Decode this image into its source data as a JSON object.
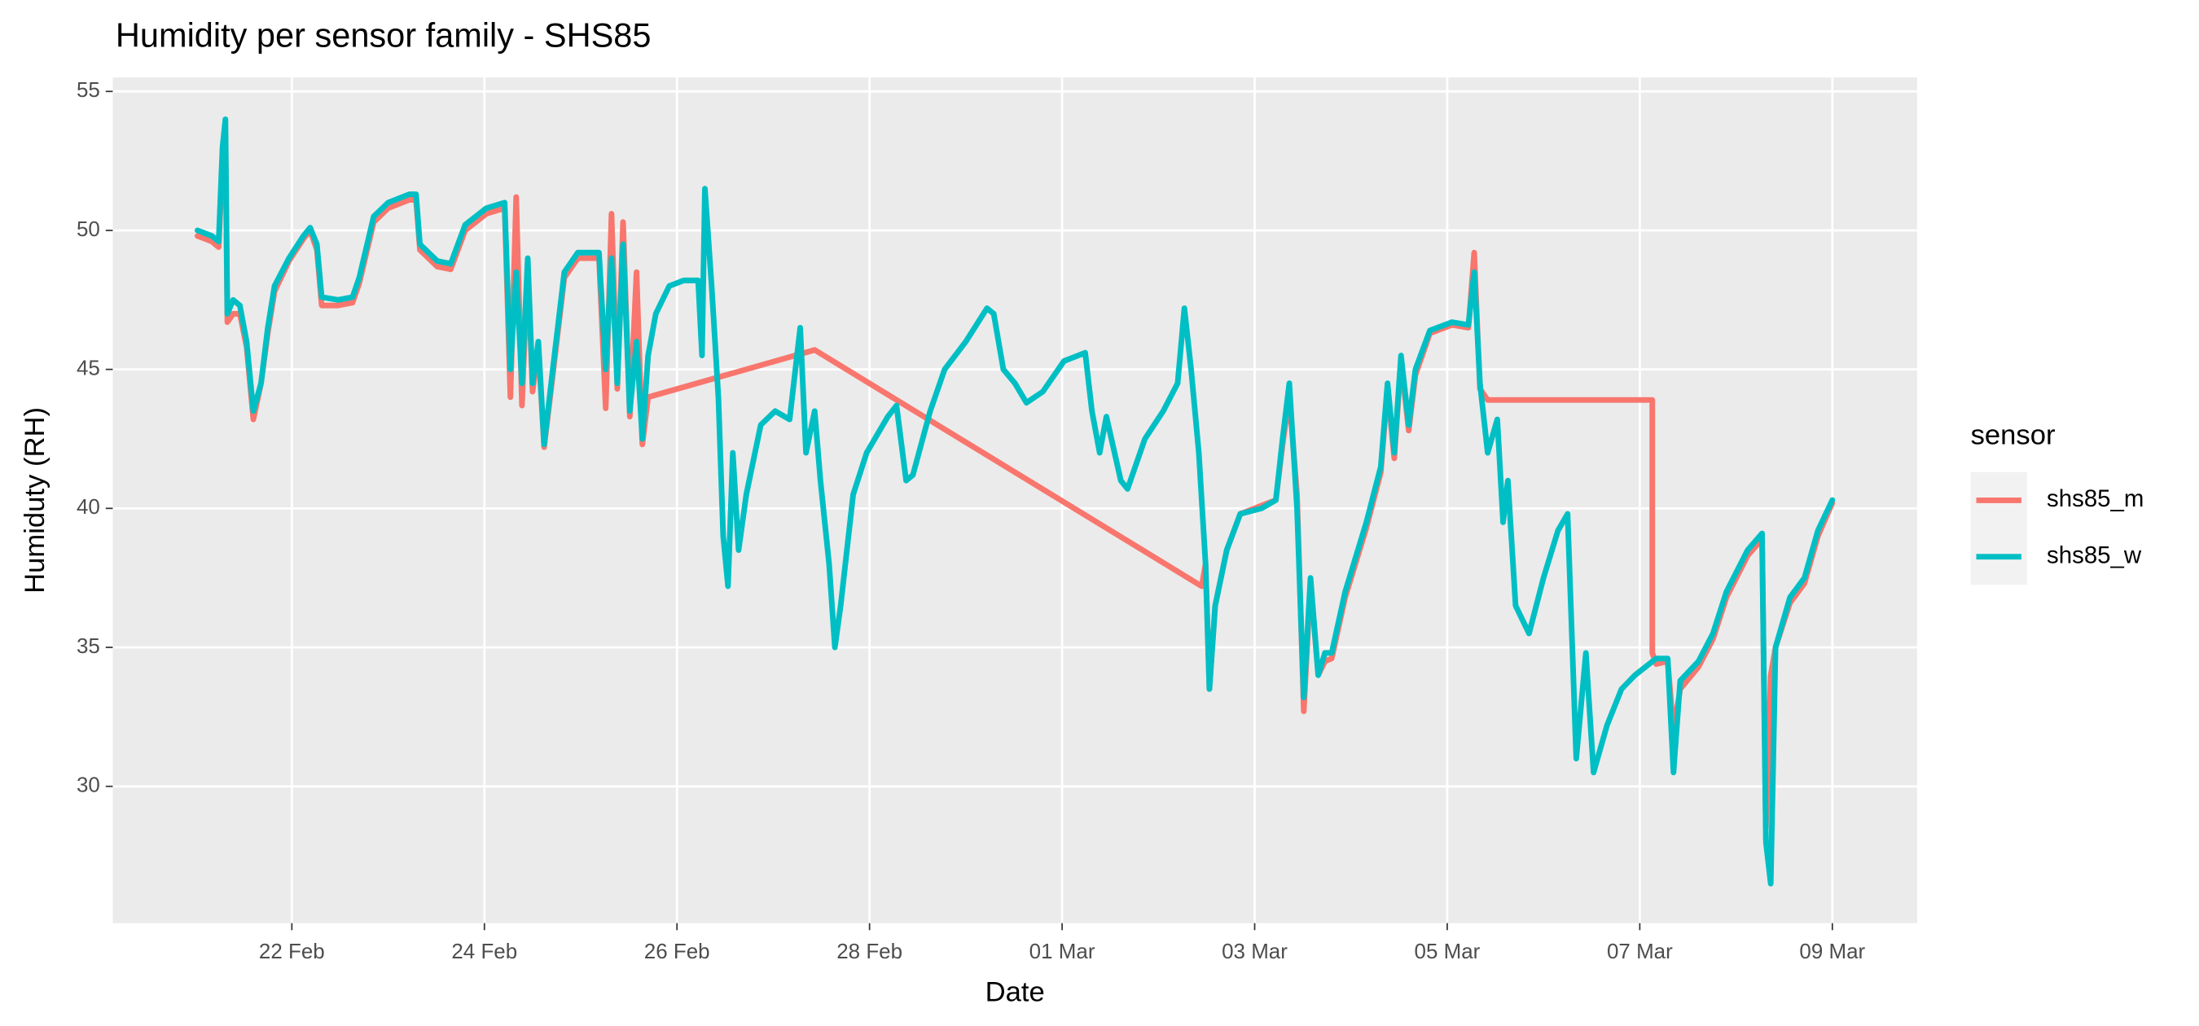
{
  "chart_data": {
    "type": "line",
    "title": "Humidity per sensor family - SHS85",
    "x_label": "Date",
    "y_label": "Humiduty (RH)",
    "legend_title": "sensor",
    "legend_position": "right",
    "grid": true,
    "xlim": [
      20.14,
      38.88
    ],
    "xticks": [
      {
        "value": 22,
        "label": "22 Feb"
      },
      {
        "value": 24,
        "label": "24 Feb"
      },
      {
        "value": 26,
        "label": "26 Feb"
      },
      {
        "value": 28,
        "label": "28 Feb"
      },
      {
        "value": 30,
        "label": "01 Mar"
      },
      {
        "value": 32,
        "label": "03 Mar"
      },
      {
        "value": 34,
        "label": "05 Mar"
      },
      {
        "value": 36,
        "label": "07 Mar"
      },
      {
        "value": 38,
        "label": "09 Mar"
      }
    ],
    "ylim": [
      25.08,
      55.5
    ],
    "yticks": [
      30,
      35,
      40,
      45,
      50,
      55
    ],
    "series": [
      {
        "name": "shs85_m",
        "color": "#F8766D",
        "x": [
          21.02,
          21.17,
          21.24,
          21.28,
          21.31,
          21.33,
          21.39,
          21.46,
          21.53,
          21.6,
          21.68,
          21.75,
          21.82,
          21.97,
          22.12,
          22.19,
          22.26,
          22.31,
          22.48,
          22.63,
          22.7,
          22.85,
          23.0,
          23.22,
          23.29,
          23.33,
          23.51,
          23.65,
          23.8,
          24.02,
          24.21,
          24.27,
          24.33,
          24.39,
          24.45,
          24.5,
          24.56,
          24.62,
          24.71,
          24.83,
          24.97,
          25.19,
          25.26,
          25.32,
          25.38,
          25.44,
          25.51,
          25.58,
          25.64,
          25.7,
          27.43,
          31.45,
          31.49,
          31.53,
          31.59,
          31.71,
          31.85,
          32.07,
          32.22,
          32.29,
          32.36,
          32.44,
          32.51,
          32.58,
          32.66,
          32.73,
          32.8,
          32.94,
          33.16,
          33.31,
          33.38,
          33.45,
          33.52,
          33.6,
          33.67,
          33.82,
          34.05,
          34.22,
          34.28,
          34.34,
          34.42,
          36.13,
          36.13,
          36.17,
          36.29,
          36.35,
          36.42,
          36.61,
          36.76,
          36.9,
          37.12,
          37.27,
          37.31,
          37.36,
          37.41,
          37.56,
          37.71,
          37.85,
          38.0
        ],
        "values": [
          49.8,
          49.6,
          49.4,
          52.5,
          53.5,
          46.7,
          47,
          47,
          45.8,
          43.2,
          44.5,
          46.3,
          47.8,
          48.9,
          49.7,
          50,
          49.3,
          47.3,
          47.3,
          47.4,
          48.1,
          50.3,
          50.8,
          51.1,
          51.1,
          49.3,
          48.7,
          48.6,
          50,
          50.6,
          50.8,
          44,
          51.2,
          43.7,
          48.8,
          44.2,
          45.8,
          42.2,
          44.8,
          48.3,
          49,
          49,
          43.6,
          50.6,
          44.3,
          50.3,
          43.3,
          48.5,
          42.3,
          44,
          45.7,
          37.2,
          38,
          33.5,
          36.5,
          38.5,
          39.8,
          40.1,
          40.3,
          42.3,
          44,
          40.5,
          32.7,
          37.3,
          34,
          34.5,
          34.6,
          36.8,
          39.3,
          41.3,
          44.3,
          41.8,
          45.3,
          42.8,
          44.8,
          46.3,
          46.6,
          46.5,
          49.2,
          44.3,
          43.9,
          43.9,
          34.8,
          34.4,
          34.5,
          32,
          33.5,
          34.3,
          35.3,
          36.8,
          38.3,
          38.9,
          28.5,
          34,
          35,
          36.6,
          37.3,
          39,
          40.2
        ]
      },
      {
        "name": "shs85_w",
        "color": "#00BFC4",
        "x": [
          21.02,
          21.17,
          21.24,
          21.28,
          21.31,
          21.33,
          21.39,
          21.46,
          21.53,
          21.6,
          21.68,
          21.75,
          21.82,
          21.97,
          22.12,
          22.19,
          22.26,
          22.31,
          22.48,
          22.63,
          22.7,
          22.85,
          23.0,
          23.22,
          23.29,
          23.33,
          23.51,
          23.65,
          23.8,
          24.02,
          24.21,
          24.27,
          24.33,
          24.39,
          24.45,
          24.5,
          24.56,
          24.62,
          24.71,
          24.83,
          24.97,
          25.19,
          25.26,
          25.32,
          25.38,
          25.44,
          25.51,
          25.58,
          25.64,
          25.7,
          25.78,
          25.92,
          26.07,
          26.22,
          26.26,
          26.29,
          26.36,
          26.43,
          26.48,
          26.53,
          26.58,
          26.64,
          26.72,
          26.87,
          27.02,
          27.17,
          27.28,
          27.34,
          27.43,
          27.49,
          27.58,
          27.64,
          27.7,
          27.83,
          27.97,
          28.19,
          28.28,
          28.38,
          28.45,
          28.63,
          28.78,
          29.0,
          29.22,
          29.29,
          29.39,
          29.51,
          29.63,
          29.8,
          30.02,
          30.24,
          30.31,
          30.39,
          30.46,
          30.61,
          30.68,
          30.86,
          31.05,
          31.2,
          31.27,
          31.34,
          31.42,
          31.49,
          31.53,
          31.59,
          31.71,
          31.85,
          32.07,
          32.22,
          32.29,
          32.36,
          32.44,
          32.51,
          32.58,
          32.66,
          32.73,
          32.8,
          32.94,
          33.16,
          33.31,
          33.38,
          33.45,
          33.52,
          33.6,
          33.67,
          33.82,
          34.05,
          34.22,
          34.28,
          34.34,
          34.42,
          34.52,
          34.58,
          34.63,
          34.71,
          34.85,
          35.0,
          35.15,
          35.25,
          35.34,
          35.44,
          35.52,
          35.66,
          35.81,
          35.95,
          36.17,
          36.29,
          36.35,
          36.42,
          36.61,
          36.76,
          36.9,
          37.12,
          37.27,
          37.31,
          37.36,
          37.41,
          37.56,
          37.71,
          37.85,
          38.0
        ],
        "values": [
          50,
          49.8,
          49.6,
          53,
          54,
          47,
          47.5,
          47.3,
          46,
          43.5,
          44.5,
          46.5,
          48,
          49,
          49.8,
          50.1,
          49.5,
          47.6,
          47.5,
          47.6,
          48.3,
          50.5,
          51,
          51.3,
          51.3,
          49.5,
          48.9,
          48.8,
          50.2,
          50.8,
          51,
          45,
          48.5,
          44.5,
          49,
          44.5,
          46,
          42.3,
          45,
          48.5,
          49.2,
          49.2,
          45,
          49,
          44.5,
          49.5,
          43.5,
          46,
          42.5,
          45.5,
          47,
          48,
          48.2,
          48.2,
          45.5,
          51.5,
          48,
          44,
          39,
          37.2,
          42,
          38.5,
          40.5,
          43,
          43.5,
          43.2,
          46.5,
          42,
          43.5,
          41,
          38,
          35,
          36.5,
          40.5,
          42,
          43.3,
          43.7,
          41,
          41.2,
          43.5,
          45,
          46,
          47.2,
          47,
          45,
          44.5,
          43.8,
          44.2,
          45.3,
          45.6,
          43.5,
          42,
          43.3,
          41,
          40.7,
          42.5,
          43.5,
          44.5,
          47.2,
          45,
          42,
          38,
          33.5,
          36.5,
          38.5,
          39.8,
          40,
          40.3,
          42.5,
          44.5,
          40,
          33.2,
          37.5,
          34,
          34.8,
          34.8,
          37,
          39.5,
          41.5,
          44.5,
          42,
          45.5,
          43,
          45,
          46.4,
          46.7,
          46.6,
          48.5,
          44.5,
          42,
          43.2,
          39.5,
          41,
          36.5,
          35.5,
          37.5,
          39.2,
          39.8,
          31,
          34.8,
          30.5,
          32.2,
          33.5,
          34,
          34.6,
          34.6,
          30.5,
          33.8,
          34.5,
          35.5,
          37,
          38.5,
          39.1,
          28,
          26.5,
          35,
          36.8,
          37.5,
          39.2,
          40.3
        ]
      }
    ]
  }
}
